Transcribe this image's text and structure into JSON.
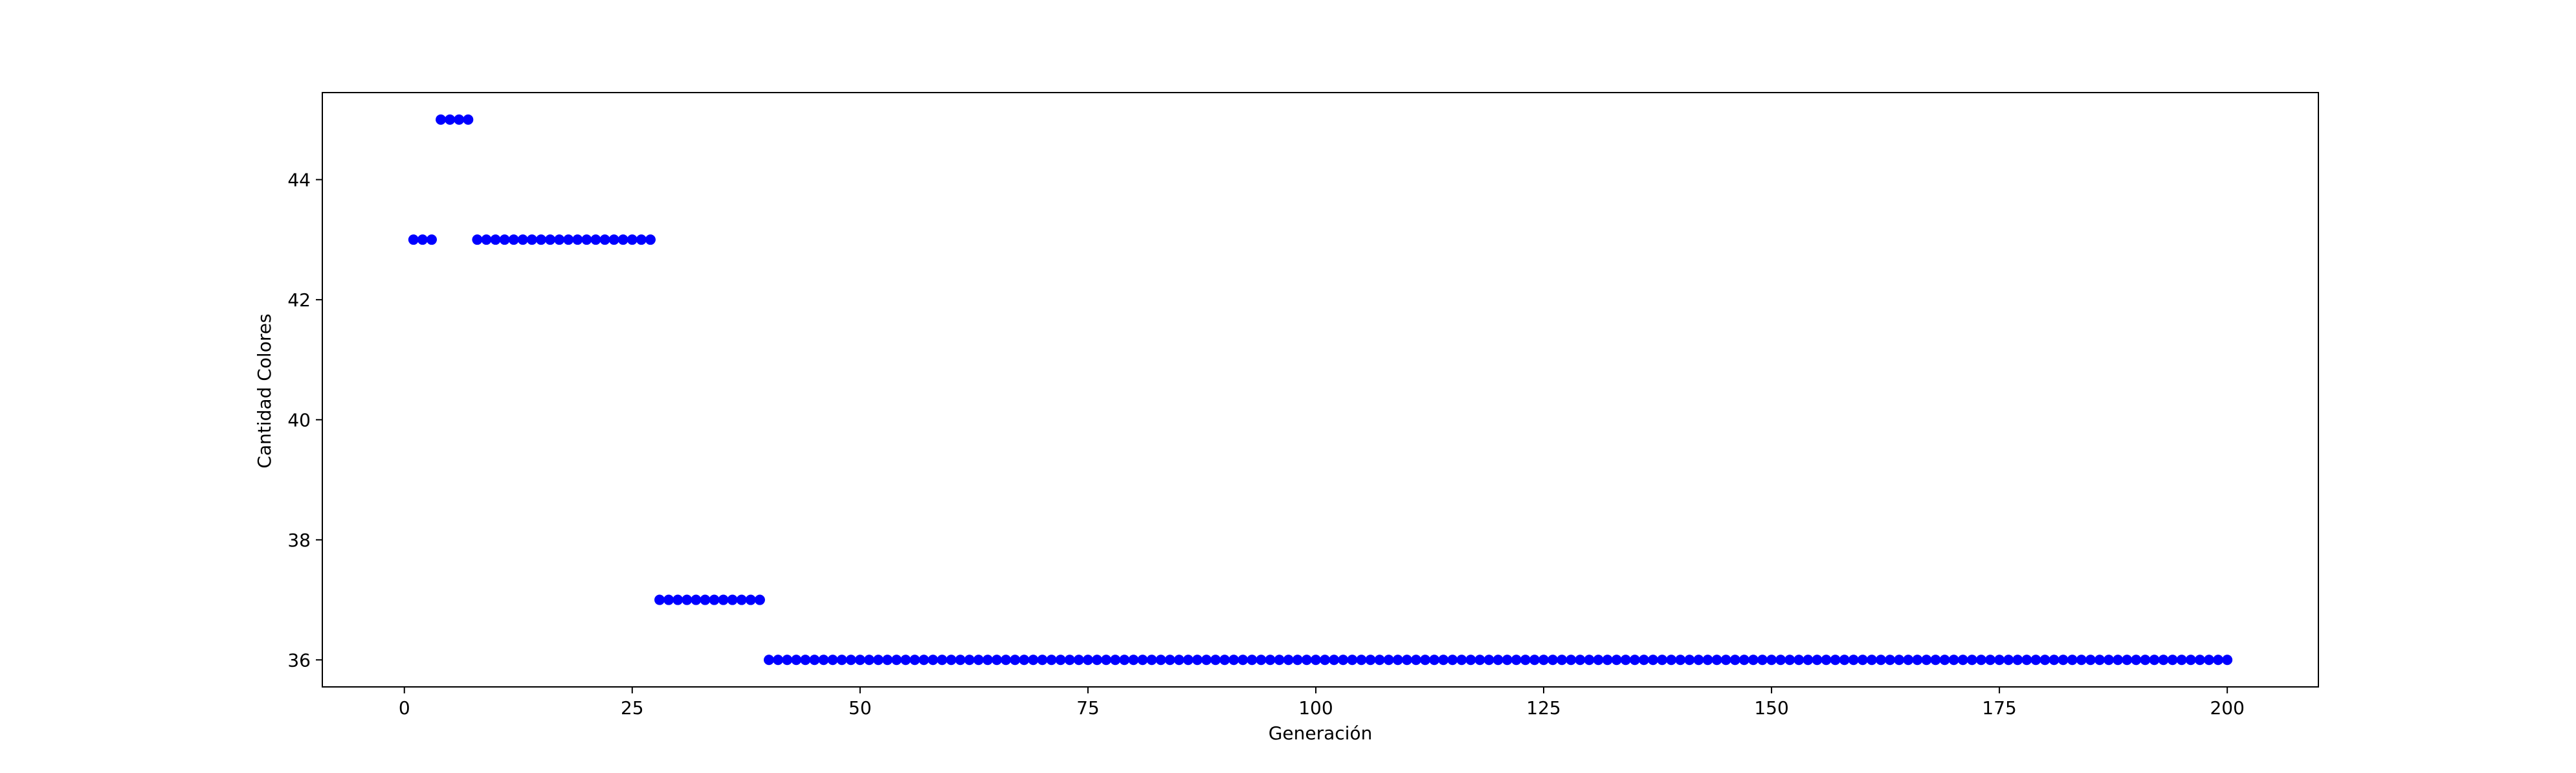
{
  "chart_data": {
    "type": "scatter",
    "title": "",
    "xlabel": "Generación",
    "ylabel": "Cantidad Colores",
    "xlim": [
      -9,
      210
    ],
    "ylim": [
      35.55,
      45.45
    ],
    "xticks": [
      0,
      25,
      50,
      75,
      100,
      125,
      150,
      175,
      200
    ],
    "yticks": [
      36,
      38,
      40,
      42,
      44
    ],
    "grid": false,
    "legend": "none",
    "marker_color": "#0000ff",
    "series": [
      {
        "x": [
          1,
          2,
          3,
          4,
          5,
          6,
          7,
          8,
          9,
          10,
          11,
          12,
          13,
          14,
          15,
          16,
          17,
          18,
          19,
          20,
          21,
          22,
          23,
          24,
          25,
          26,
          27,
          28,
          29,
          30,
          31,
          32,
          33,
          34,
          35,
          36,
          37,
          38,
          39,
          40,
          41,
          42,
          43,
          44,
          45,
          46,
          47,
          48,
          49,
          50,
          51,
          52,
          53,
          54,
          55,
          56,
          57,
          58,
          59,
          60,
          61,
          62,
          63,
          64,
          65,
          66,
          67,
          68,
          69,
          70,
          71,
          72,
          73,
          74,
          75,
          76,
          77,
          78,
          79,
          80,
          81,
          82,
          83,
          84,
          85,
          86,
          87,
          88,
          89,
          90,
          91,
          92,
          93,
          94,
          95,
          96,
          97,
          98,
          99,
          100,
          101,
          102,
          103,
          104,
          105,
          106,
          107,
          108,
          109,
          110,
          111,
          112,
          113,
          114,
          115,
          116,
          117,
          118,
          119,
          120,
          121,
          122,
          123,
          124,
          125,
          126,
          127,
          128,
          129,
          130,
          131,
          132,
          133,
          134,
          135,
          136,
          137,
          138,
          139,
          140,
          141,
          142,
          143,
          144,
          145,
          146,
          147,
          148,
          149,
          150,
          151,
          152,
          153,
          154,
          155,
          156,
          157,
          158,
          159,
          160,
          161,
          162,
          163,
          164,
          165,
          166,
          167,
          168,
          169,
          170,
          171,
          172,
          173,
          174,
          175,
          176,
          177,
          178,
          179,
          180,
          181,
          182,
          183,
          184,
          185,
          186,
          187,
          188,
          189,
          190,
          191,
          192,
          193,
          194,
          195,
          196,
          197,
          198,
          199,
          200
        ],
        "y": [
          43,
          43,
          43,
          45,
          45,
          45,
          45,
          43,
          43,
          43,
          43,
          43,
          43,
          43,
          43,
          43,
          43,
          43,
          43,
          43,
          43,
          43,
          43,
          43,
          43,
          43,
          43,
          37,
          37,
          37,
          37,
          37,
          37,
          37,
          37,
          37,
          37,
          37,
          37,
          36,
          36,
          36,
          36,
          36,
          36,
          36,
          36,
          36,
          36,
          36,
          36,
          36,
          36,
          36,
          36,
          36,
          36,
          36,
          36,
          36,
          36,
          36,
          36,
          36,
          36,
          36,
          36,
          36,
          36,
          36,
          36,
          36,
          36,
          36,
          36,
          36,
          36,
          36,
          36,
          36,
          36,
          36,
          36,
          36,
          36,
          36,
          36,
          36,
          36,
          36,
          36,
          36,
          36,
          36,
          36,
          36,
          36,
          36,
          36,
          36,
          36,
          36,
          36,
          36,
          36,
          36,
          36,
          36,
          36,
          36,
          36,
          36,
          36,
          36,
          36,
          36,
          36,
          36,
          36,
          36,
          36,
          36,
          36,
          36,
          36,
          36,
          36,
          36,
          36,
          36,
          36,
          36,
          36,
          36,
          36,
          36,
          36,
          36,
          36,
          36,
          36,
          36,
          36,
          36,
          36,
          36,
          36,
          36,
          36,
          36,
          36,
          36,
          36,
          36,
          36,
          36,
          36,
          36,
          36,
          36,
          36,
          36,
          36,
          36,
          36,
          36,
          36,
          36,
          36,
          36,
          36,
          36,
          36,
          36,
          36,
          36,
          36,
          36,
          36,
          36,
          36,
          36,
          36,
          36,
          36,
          36,
          36,
          36,
          36,
          36,
          36,
          36,
          36,
          36,
          36,
          36,
          36,
          36,
          36,
          36
        ]
      }
    ]
  }
}
